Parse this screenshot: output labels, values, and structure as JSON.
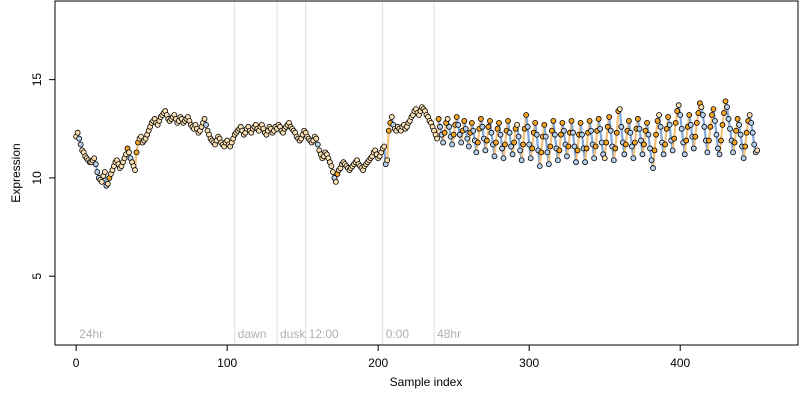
{
  "chart_data": {
    "type": "scatter",
    "title": "",
    "xlabel": "Sample index",
    "ylabel": "Expression",
    "xlim": [
      -14,
      478
    ],
    "ylim": [
      1.5,
      19
    ],
    "x_ticks": [
      0,
      100,
      200,
      300,
      400
    ],
    "y_ticks": [
      5,
      10,
      15
    ],
    "grid": false,
    "colors": {
      "line_segment": "#a6a6a6",
      "rising_segment": "#f4c27a",
      "falling_segment": "#7ea6d8",
      "marker_high": "#f6a623",
      "marker_mid": "#fde2b4",
      "marker_low": "#b8d1ee",
      "marker_edge": "#000000",
      "annotation": "#b0b0b0",
      "vline": "#dddddd"
    },
    "phase_markers": [
      {
        "x": 0,
        "label": "24hr"
      },
      {
        "x": 105,
        "label": "dawn"
      },
      {
        "x": 133,
        "label": "dusk"
      },
      {
        "x": 152,
        "label": "12:00"
      },
      {
        "x": 203,
        "label": "0:00"
      },
      {
        "x": 237,
        "label": "48hr"
      }
    ],
    "vlines": [
      105,
      133,
      152,
      203,
      237
    ],
    "series": [
      {
        "values": [
          12.1,
          12.3,
          12.0,
          11.7,
          11.4,
          11.3,
          11.1,
          11.0,
          10.9,
          10.8,
          10.8,
          10.9,
          11.0,
          10.7,
          10.3,
          10.0,
          9.9,
          9.8,
          10.1,
          10.3,
          9.6,
          9.7,
          10.0,
          10.2,
          10.4,
          10.6,
          10.8,
          10.9,
          10.7,
          10.5,
          10.6,
          10.8,
          11.0,
          11.2,
          11.5,
          11.3,
          11.0,
          10.8,
          10.6,
          10.4,
          11.3,
          11.8,
          12.0,
          12.1,
          11.8,
          11.9,
          12.0,
          12.2,
          12.4,
          12.6,
          12.8,
          12.9,
          13.0,
          12.8,
          12.7,
          12.9,
          13.1,
          13.2,
          13.3,
          13.4,
          13.2,
          13.0,
          12.9,
          13.0,
          13.1,
          13.2,
          13.0,
          12.8,
          12.9,
          13.1,
          13.0,
          12.8,
          12.9,
          13.0,
          13.1,
          12.9,
          12.7,
          12.6,
          12.5,
          12.7,
          12.5,
          12.3,
          12.4,
          12.6,
          12.8,
          13.0,
          12.7,
          12.4,
          12.2,
          12.0,
          11.9,
          11.8,
          11.7,
          11.9,
          12.1,
          12.0,
          11.8,
          11.7,
          11.6,
          11.8,
          11.9,
          11.7,
          11.6,
          11.8,
          12.0,
          12.2,
          12.3,
          12.4,
          12.5,
          12.6,
          12.4,
          12.2,
          12.3,
          12.5,
          12.6,
          12.4,
          12.3,
          12.5,
          12.6,
          12.7,
          12.5,
          12.4,
          12.6,
          12.7,
          12.5,
          12.3,
          12.2,
          12.4,
          12.6,
          12.5,
          12.3,
          12.4,
          12.6,
          12.5,
          12.7,
          12.6,
          12.4,
          12.3,
          12.5,
          12.6,
          12.7,
          12.8,
          12.6,
          12.5,
          12.4,
          12.3,
          12.1,
          12.0,
          11.9,
          12.0,
          12.2,
          12.4,
          12.3,
          12.1,
          12.0,
          11.9,
          11.8,
          11.9,
          12.1,
          12.0,
          11.7,
          11.4,
          11.2,
          11.0,
          11.1,
          11.3,
          11.2,
          11.0,
          10.8,
          10.6,
          10.3,
          10.0,
          9.8,
          10.2,
          10.4,
          10.5,
          10.7,
          10.8,
          10.7,
          10.6,
          10.5,
          10.4,
          10.5,
          10.6,
          10.7,
          10.8,
          10.9,
          10.7,
          10.6,
          10.5,
          10.4,
          10.6,
          10.7,
          10.8,
          10.9,
          11.0,
          11.1,
          11.3,
          11.4,
          11.2,
          11.0,
          11.1,
          11.3,
          11.5,
          11.6,
          10.7,
          10.9,
          12.4,
          12.8,
          13.1,
          12.7,
          12.5,
          12.4,
          12.6,
          12.5,
          12.4,
          12.6,
          12.7,
          12.5,
          12.6,
          12.8,
          12.9,
          13.1,
          13.2,
          13.4,
          13.5,
          13.3,
          13.2,
          13.4,
          13.6,
          13.5,
          13.4,
          13.2,
          13.1,
          12.9,
          12.8,
          12.6,
          12.4,
          12.2,
          12.0,
          13.0,
          12.6,
          12.2,
          11.8,
          12.3,
          12.8,
          13.0,
          12.6,
          12.1,
          11.7,
          12.2,
          12.7,
          13.1,
          12.7,
          12.2,
          11.8,
          12.4,
          12.9,
          12.5,
          12.0,
          11.6,
          12.3,
          12.8,
          12.4,
          11.9,
          11.3,
          11.8,
          12.5,
          13.0,
          12.6,
          12.0,
          11.4,
          11.9,
          12.6,
          12.9,
          12.3,
          11.7,
          11.1,
          11.8,
          12.5,
          12.8,
          12.2,
          11.5,
          11.0,
          11.7,
          12.4,
          12.9,
          12.3,
          11.6,
          11.2,
          11.8,
          12.5,
          12.7,
          12.1,
          11.4,
          10.9,
          11.7,
          12.5,
          13.2,
          12.6,
          11.7,
          11.0,
          11.5,
          12.3,
          12.8,
          12.2,
          11.4,
          10.6,
          11.3,
          12.1,
          12.7,
          12.1,
          11.3,
          10.7,
          11.6,
          12.4,
          12.9,
          12.2,
          11.5,
          10.9,
          11.4,
          12.2,
          12.8,
          12.4,
          11.7,
          11.1,
          11.6,
          12.3,
          12.9,
          12.3,
          11.6,
          10.8,
          11.4,
          12.2,
          12.8,
          12.2,
          11.5,
          10.8,
          11.5,
          12.3,
          12.9,
          12.4,
          11.7,
          11.0,
          11.6,
          12.4,
          13.0,
          12.5,
          11.8,
          11.2,
          11.0,
          11.8,
          12.6,
          13.1,
          12.4,
          11.6,
          10.9,
          11.5,
          12.3,
          13.4,
          13.5,
          12.6,
          11.8,
          11.2,
          11.7,
          12.4,
          12.9,
          12.3,
          11.6,
          11.0,
          11.8,
          12.5,
          13.0,
          12.5,
          11.9,
          11.2,
          11.7,
          12.4,
          12.8,
          12.2,
          11.5,
          10.9,
          10.5,
          11.4,
          12.2,
          12.9,
          13.2,
          12.6,
          11.8,
          11.2,
          11.7,
          12.5,
          13.1,
          12.7,
          11.9,
          11.4,
          12.0,
          12.8,
          13.4,
          13.7,
          13.2,
          12.5,
          11.8,
          11.2,
          11.9,
          12.6,
          13.2,
          12.7,
          12.1,
          11.5,
          12.1,
          12.8,
          13.3,
          13.8,
          13.6,
          13.2,
          12.6,
          11.9,
          11.3,
          11.9,
          12.6,
          13.2,
          13.5,
          12.9,
          12.2,
          11.5,
          11.2,
          11.9,
          12.7,
          13.3,
          13.9,
          13.6,
          13.0,
          12.5,
          11.9,
          11.3,
          11.8,
          12.4,
          13.0,
          12.7,
          12.2,
          11.6,
          11.0,
          11.6,
          12.3,
          12.9,
          13.2,
          12.8,
          12.3,
          11.7,
          11.3,
          11.4
        ]
      }
    ]
  }
}
